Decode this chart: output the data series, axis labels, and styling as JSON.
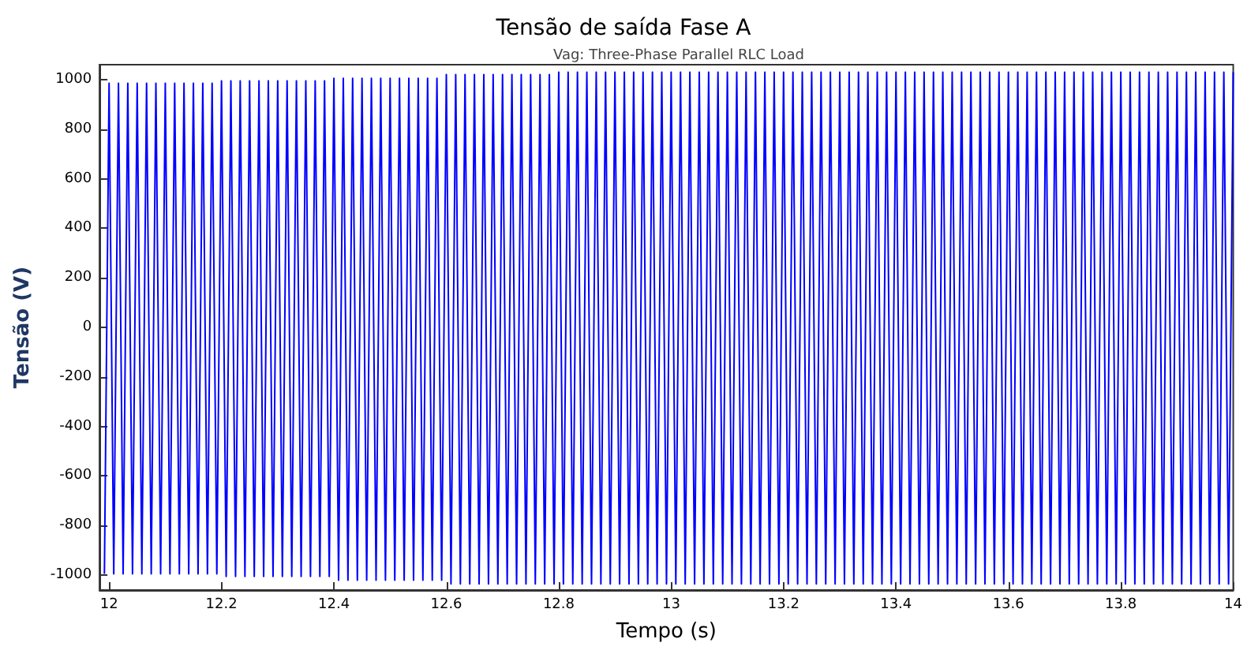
{
  "chart_data": {
    "type": "line",
    "title": "Tensão de saída Fase A",
    "subtitle": "Vag: Three-Phase Parallel RLC Load",
    "xlabel": "Tempo (s)",
    "ylabel": "Tensão (V)",
    "xlim": [
      11.983,
      14.0
    ],
    "xticks": [
      12,
      12.2,
      12.4,
      12.6,
      12.8,
      13,
      13.2,
      13.4,
      13.6,
      13.8,
      14
    ],
    "ylim": [
      -1060,
      1060
    ],
    "yticks": [
      -1000,
      -800,
      -600,
      -400,
      -200,
      0,
      200,
      400,
      600,
      800,
      1000
    ],
    "grid": false,
    "marker": "none",
    "line_style": "solid",
    "series": [
      {
        "color": "#0000ff",
        "x": [
          11.9917,
          12.0,
          12.0083,
          12.0167,
          12.025,
          12.0333,
          12.0417,
          12.05,
          12.0583,
          12.0667,
          12.075,
          12.0833,
          12.0917,
          12.1,
          12.1083,
          12.1167,
          12.125,
          12.1333,
          12.1417,
          12.15,
          12.1583,
          12.1667,
          12.175,
          12.1833,
          12.1917,
          12.2,
          12.2083,
          12.2167,
          12.225,
          12.2333,
          12.2417,
          12.25,
          12.2583,
          12.2667,
          12.275,
          12.2833,
          12.2917,
          12.3,
          12.3083,
          12.3167,
          12.325,
          12.3333,
          12.3417,
          12.35,
          12.3583,
          12.3667,
          12.375,
          12.3833,
          12.3917,
          12.4,
          12.4083,
          12.4167,
          12.425,
          12.4333,
          12.4417,
          12.45,
          12.4583,
          12.4667,
          12.475,
          12.4833,
          12.4917,
          12.5,
          12.5083,
          12.5167,
          12.525,
          12.5333,
          12.5417,
          12.55,
          12.5583,
          12.5667,
          12.575,
          12.5833,
          12.5917,
          12.6,
          12.6083,
          12.6167,
          12.625,
          12.6333,
          12.6417,
          12.65,
          12.6583,
          12.6667,
          12.675,
          12.6833,
          12.6917,
          12.7,
          12.7083,
          12.7167,
          12.725,
          12.7333,
          12.7417,
          12.75,
          12.7583,
          12.7667,
          12.775,
          12.7833,
          12.7917,
          12.8,
          12.8083,
          12.8167,
          12.825,
          12.8333,
          12.8417,
          12.85,
          12.8583,
          12.8667,
          12.875,
          12.8833,
          12.8917,
          12.9,
          12.9083,
          12.9167,
          12.925,
          12.9333,
          12.9417,
          12.95,
          12.9583,
          12.9667,
          12.975,
          12.9833,
          12.9917,
          13.0,
          13.0083,
          13.0167,
          13.025,
          13.0333,
          13.0417,
          13.05,
          13.0583,
          13.0667,
          13.075,
          13.0833,
          13.0917,
          13.1,
          13.1083,
          13.1167,
          13.125,
          13.1333,
          13.1417,
          13.15,
          13.1583,
          13.1667,
          13.175,
          13.1833,
          13.1917,
          13.2,
          13.2083,
          13.2167,
          13.225,
          13.2333,
          13.2417,
          13.25,
          13.2583,
          13.2667,
          13.275,
          13.2833,
          13.2917,
          13.3,
          13.3083,
          13.3167,
          13.325,
          13.3333,
          13.3417,
          13.35,
          13.3583,
          13.3667,
          13.375,
          13.3833,
          13.3917,
          13.4,
          13.4083,
          13.4167,
          13.425,
          13.4333,
          13.4417,
          13.45,
          13.4583,
          13.4667,
          13.475,
          13.4833,
          13.4917,
          13.5,
          13.5083,
          13.5167,
          13.525,
          13.5333,
          13.5417,
          13.55,
          13.5583,
          13.5667,
          13.575,
          13.5833,
          13.5917,
          13.6,
          13.6083,
          13.6167,
          13.625,
          13.6333,
          13.6417,
          13.65,
          13.6583,
          13.6667,
          13.675,
          13.6833,
          13.6917,
          13.7,
          13.7083,
          13.7167,
          13.725,
          13.7333,
          13.7417,
          13.75,
          13.7583,
          13.7667,
          13.775,
          13.7833,
          13.7917,
          13.8,
          13.8083,
          13.8167,
          13.825,
          13.8333,
          13.8417,
          13.85,
          13.8583,
          13.8667,
          13.875,
          13.8833,
          13.8917,
          13.9,
          13.9083,
          13.9167,
          13.925,
          13.9333,
          13.9417,
          13.95,
          13.9583,
          13.9667,
          13.975,
          13.9833,
          13.9917,
          14.0
        ],
        "values": [
          -995,
          985,
          -995,
          985,
          -995,
          985,
          -995,
          985,
          -995,
          985,
          -995,
          985,
          -995,
          985,
          -995,
          985,
          -995,
          985,
          -995,
          985,
          -995,
          985,
          -995,
          985,
          -995,
          995,
          -1005,
          995,
          -1005,
          995,
          -1005,
          995,
          -1005,
          995,
          -1005,
          995,
          -1005,
          995,
          -1005,
          995,
          -1005,
          995,
          -1005,
          995,
          -1005,
          995,
          -1005,
          995,
          -1005,
          1005,
          -1020,
          1005,
          -1020,
          1005,
          -1020,
          1005,
          -1020,
          1005,
          -1020,
          1005,
          -1020,
          1005,
          -1020,
          1005,
          -1020,
          1005,
          -1020,
          1005,
          -1020,
          1005,
          -1020,
          1005,
          -1020,
          1020,
          -1035,
          1020,
          -1035,
          1020,
          -1035,
          1020,
          -1035,
          1020,
          -1035,
          1020,
          -1035,
          1020,
          -1035,
          1020,
          -1035,
          1020,
          -1035,
          1020,
          -1035,
          1020,
          -1035,
          1020,
          -1035,
          1030,
          -1035,
          1030,
          -1035,
          1030,
          -1035,
          1030,
          -1035,
          1030,
          -1035,
          1030,
          -1035,
          1030,
          -1035,
          1030,
          -1035,
          1030,
          -1035,
          1030,
          -1035,
          1030,
          -1035,
          1030,
          -1035,
          1030,
          -1035,
          1030,
          -1035,
          1030,
          -1035,
          1030,
          -1035,
          1030,
          -1035,
          1030,
          -1035,
          1030,
          -1035,
          1030,
          -1035,
          1030,
          -1035,
          1030,
          -1035,
          1030,
          -1035,
          1030,
          -1035,
          1030,
          -1035,
          1030,
          -1035,
          1030,
          -1035,
          1030,
          -1035,
          1030,
          -1035,
          1030,
          -1035,
          1030,
          -1035,
          1030,
          -1035,
          1030,
          -1035,
          1030,
          -1035,
          1030,
          -1035,
          1030,
          -1035,
          1030,
          -1035,
          1030,
          -1035,
          1030,
          -1035,
          1030,
          -1035,
          1030,
          -1035,
          1030,
          -1035,
          1030,
          -1035,
          1030,
          -1035,
          1030,
          -1035,
          1030,
          -1035,
          1030,
          -1035,
          1030,
          -1035,
          1030,
          -1035,
          1030,
          -1035,
          1030,
          -1035,
          1030,
          -1035,
          1030,
          -1035,
          1030,
          -1035,
          1030,
          -1035,
          1030,
          -1035,
          1030,
          -1035,
          1030,
          -1035,
          1030,
          -1035,
          1030,
          -1035,
          1030,
          -1035,
          1030,
          -1035,
          1030,
          -1035,
          1030,
          -1035,
          1030,
          -1035,
          1030,
          -1035,
          1030,
          -1035,
          1030,
          -1035,
          1030,
          -1035,
          1030,
          -1035,
          1030,
          -1035,
          1030,
          -1035,
          1030
        ]
      }
    ]
  }
}
